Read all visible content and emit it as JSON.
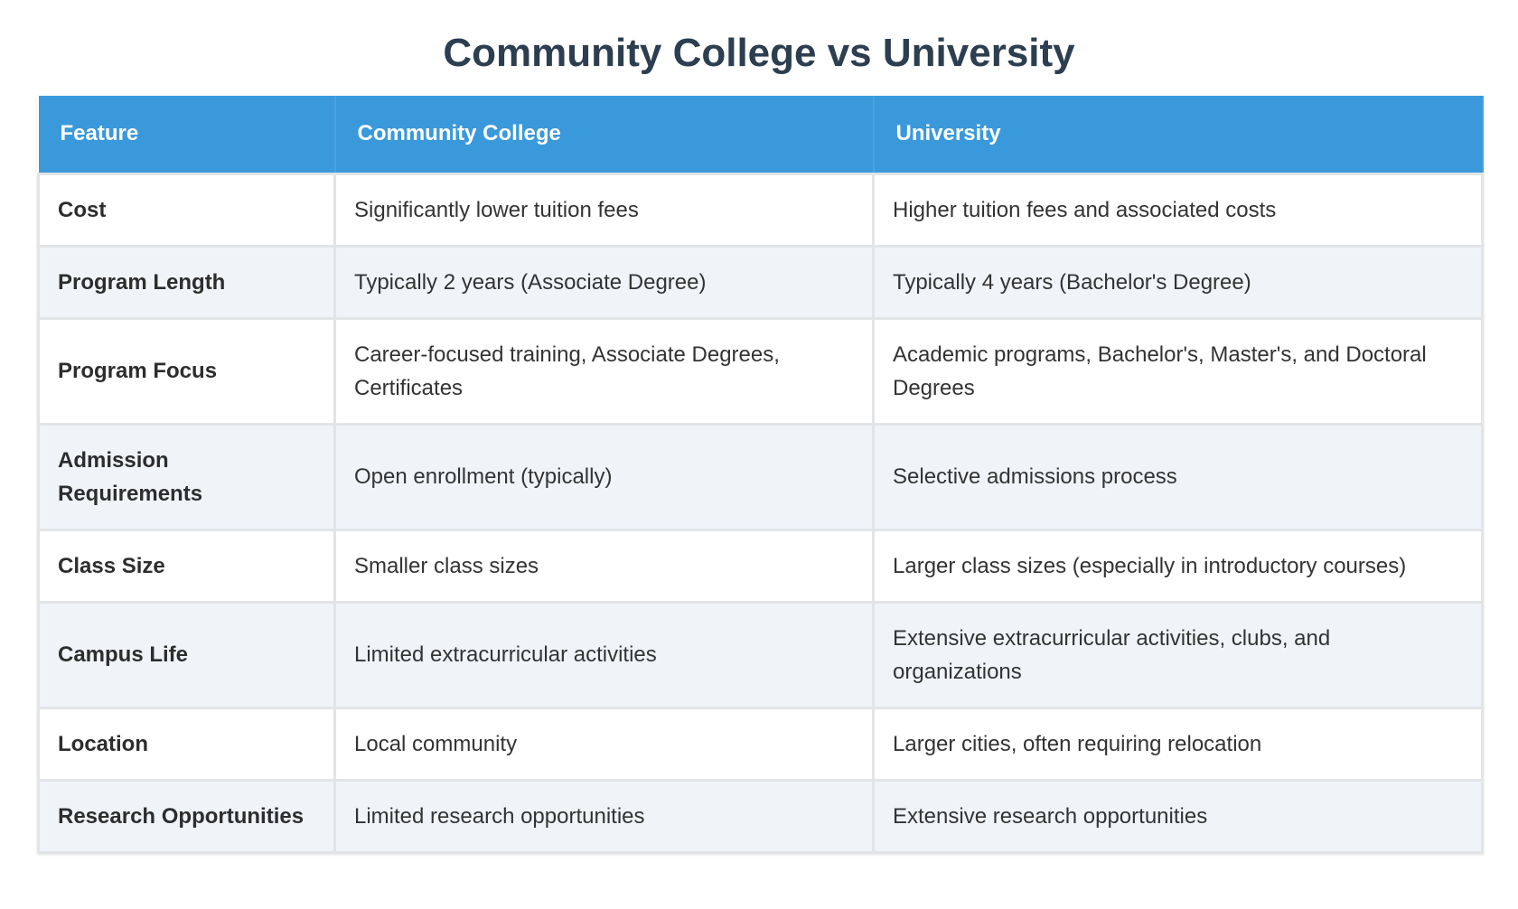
{
  "title": "Community College vs University",
  "table": {
    "header": [
      "Feature",
      "Community College",
      "University"
    ],
    "rows": [
      [
        "Cost",
        "Significantly lower tuition fees",
        "Higher tuition fees and associated costs"
      ],
      [
        "Program Length",
        "Typically 2 years (Associate Degree)",
        "Typically 4 years (Bachelor's Degree)"
      ],
      [
        "Program Focus",
        "Career-focused training, Associate Degrees, Certificates",
        "Academic programs, Bachelor's, Master's, and Doctoral Degrees"
      ],
      [
        "Admission Requirements",
        "Open enrollment (typically)",
        "Selective admissions process"
      ],
      [
        "Class Size",
        "Smaller class sizes",
        "Larger class sizes (especially in introductory courses)"
      ],
      [
        "Campus Life",
        "Limited extracurricular activities",
        "Extensive extracurricular activities, clubs, and organizations"
      ],
      [
        "Location",
        "Local community",
        "Larger cities, often requiring relocation"
      ],
      [
        "Research Opportunities",
        "Limited research opportunities",
        "Extensive research opportunities"
      ]
    ]
  }
}
